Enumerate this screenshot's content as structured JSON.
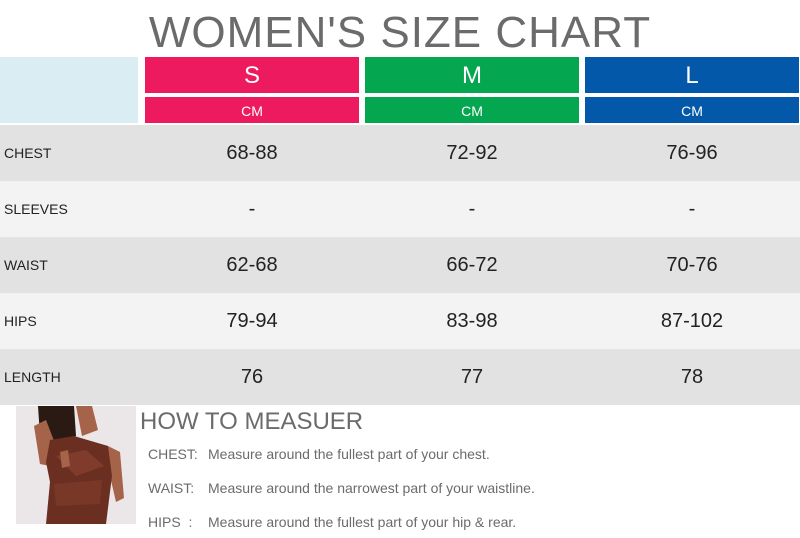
{
  "title": "WOMEN'S SIZE CHART",
  "sizes": [
    {
      "label": "S",
      "unit": "CM",
      "color": "#ee1a60"
    },
    {
      "label": "M",
      "unit": "CM",
      "color": "#04a650"
    },
    {
      "label": "L",
      "unit": "CM",
      "color": "#0458a9"
    }
  ],
  "rows": [
    {
      "label": "CHEST",
      "values": [
        "68-88",
        "72-92",
        "76-96"
      ]
    },
    {
      "label": "SLEEVES",
      "values": [
        "-",
        "-",
        "-"
      ]
    },
    {
      "label": "WAIST",
      "values": [
        "62-68",
        "66-72",
        "70-76"
      ]
    },
    {
      "label": "HIPS",
      "values": [
        "79-94",
        "83-98",
        "87-102"
      ]
    },
    {
      "label": "LENGTH",
      "values": [
        "76",
        "77",
        "78"
      ]
    }
  ],
  "measure": {
    "title": "HOW TO MEASUER",
    "lines": [
      {
        "label": "CHEST:",
        "text": "Measure around the fullest part of your chest."
      },
      {
        "label": "WAIST:",
        "text": "Measure around the narrowest part of your waistline."
      },
      {
        "label": "HIPS  :",
        "text": "Measure around the fullest part of your hip & rear."
      }
    ]
  },
  "colors": {
    "row_dark": "#e2e2e2",
    "row_light": "#f3f3f3",
    "header_blank": "#d9edf3"
  }
}
